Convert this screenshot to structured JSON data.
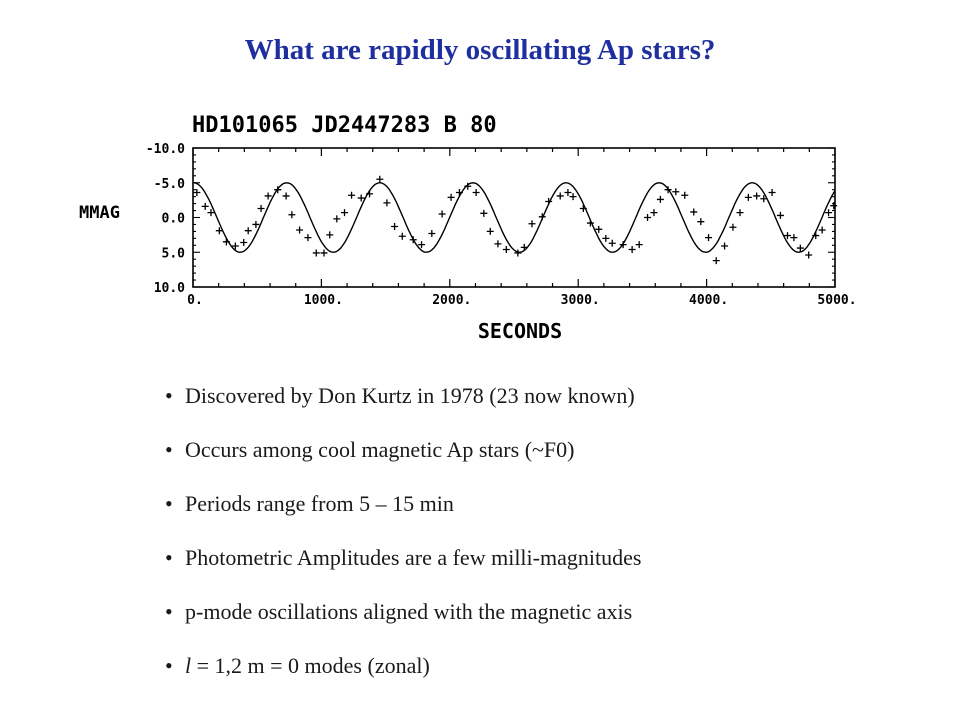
{
  "title": "What are rapidly oscillating Ap stars?",
  "chart_data": {
    "type": "line",
    "title": "HD101065 JD2447283 B 80",
    "xlabel": "SECONDS",
    "ylabel": "MMAG",
    "xlim": [
      0,
      5000
    ],
    "ylim": [
      -10,
      10
    ],
    "y_inverted": true,
    "x_ticks": [
      "0.",
      "1000.",
      "2000.",
      "3000.",
      "4000.",
      "5000."
    ],
    "y_ticks": [
      "-10.0",
      "-5.0",
      "0.0",
      "5.0",
      "10.0"
    ],
    "fit": {
      "amplitude": 5.0,
      "period": 725,
      "phase_peak_x": 1455,
      "offset": 0
    },
    "observations": [
      {
        "x": 30,
        "y": -3.6
      },
      {
        "x": 95,
        "y": -1.6
      },
      {
        "x": 140,
        "y": -0.7
      },
      {
        "x": 205,
        "y": 1.9
      },
      {
        "x": 260,
        "y": 3.5
      },
      {
        "x": 330,
        "y": 4.1
      },
      {
        "x": 395,
        "y": 3.6
      },
      {
        "x": 430,
        "y": 1.9
      },
      {
        "x": 490,
        "y": 1.0
      },
      {
        "x": 530,
        "y": -1.3
      },
      {
        "x": 585,
        "y": -3.1
      },
      {
        "x": 660,
        "y": -4.0
      },
      {
        "x": 725,
        "y": -3.1
      },
      {
        "x": 770,
        "y": -0.4
      },
      {
        "x": 830,
        "y": 1.8
      },
      {
        "x": 895,
        "y": 2.9
      },
      {
        "x": 960,
        "y": 5.1
      },
      {
        "x": 1020,
        "y": 5.1
      },
      {
        "x": 1065,
        "y": 2.5
      },
      {
        "x": 1120,
        "y": 0.2
      },
      {
        "x": 1180,
        "y": -0.7
      },
      {
        "x": 1235,
        "y": -3.2
      },
      {
        "x": 1310,
        "y": -2.8
      },
      {
        "x": 1375,
        "y": -3.4
      },
      {
        "x": 1455,
        "y": -5.5
      },
      {
        "x": 1510,
        "y": -2.1
      },
      {
        "x": 1570,
        "y": 1.3
      },
      {
        "x": 1630,
        "y": 2.7
      },
      {
        "x": 1715,
        "y": 3.2
      },
      {
        "x": 1780,
        "y": 3.9
      },
      {
        "x": 1860,
        "y": 2.3
      },
      {
        "x": 1940,
        "y": -0.5
      },
      {
        "x": 2010,
        "y": -2.9
      },
      {
        "x": 2075,
        "y": -3.6
      },
      {
        "x": 2140,
        "y": -4.5
      },
      {
        "x": 2205,
        "y": -3.6
      },
      {
        "x": 2265,
        "y": -0.6
      },
      {
        "x": 2315,
        "y": 2.0
      },
      {
        "x": 2375,
        "y": 3.8
      },
      {
        "x": 2440,
        "y": 4.6
      },
      {
        "x": 2530,
        "y": 5.1
      },
      {
        "x": 2580,
        "y": 4.3
      },
      {
        "x": 2640,
        "y": 0.9
      },
      {
        "x": 2720,
        "y": -0.1
      },
      {
        "x": 2770,
        "y": -2.3
      },
      {
        "x": 2860,
        "y": -3.1
      },
      {
        "x": 2920,
        "y": -3.6
      },
      {
        "x": 2960,
        "y": -3.0
      },
      {
        "x": 3040,
        "y": -1.3
      },
      {
        "x": 3095,
        "y": 0.8
      },
      {
        "x": 3160,
        "y": 1.7
      },
      {
        "x": 3215,
        "y": 3.0
      },
      {
        "x": 3265,
        "y": 3.7
      },
      {
        "x": 3350,
        "y": 3.9
      },
      {
        "x": 3420,
        "y": 4.6
      },
      {
        "x": 3475,
        "y": 3.9
      },
      {
        "x": 3540,
        "y": 0.0
      },
      {
        "x": 3590,
        "y": -0.7
      },
      {
        "x": 3640,
        "y": -2.6
      },
      {
        "x": 3700,
        "y": -4.0
      },
      {
        "x": 3760,
        "y": -3.7
      },
      {
        "x": 3830,
        "y": -3.2
      },
      {
        "x": 3900,
        "y": -0.8
      },
      {
        "x": 3955,
        "y": 0.6
      },
      {
        "x": 4015,
        "y": 2.9
      },
      {
        "x": 4075,
        "y": 6.2
      },
      {
        "x": 4140,
        "y": 4.1
      },
      {
        "x": 4205,
        "y": 1.4
      },
      {
        "x": 4260,
        "y": -0.7
      },
      {
        "x": 4325,
        "y": -2.9
      },
      {
        "x": 4390,
        "y": -3.1
      },
      {
        "x": 4445,
        "y": -2.7
      },
      {
        "x": 4510,
        "y": -3.6
      },
      {
        "x": 4575,
        "y": -0.3
      },
      {
        "x": 4630,
        "y": 2.6
      },
      {
        "x": 4680,
        "y": 2.9
      },
      {
        "x": 4730,
        "y": 4.4
      },
      {
        "x": 4795,
        "y": 5.4
      },
      {
        "x": 4850,
        "y": 2.6
      },
      {
        "x": 4900,
        "y": 1.8
      },
      {
        "x": 4950,
        "y": -0.7
      },
      {
        "x": 4990,
        "y": -1.7
      }
    ]
  },
  "bullets": [
    {
      "text": "Discovered by Don Kurtz in 1978 (23 now known)"
    },
    {
      "text": "Occurs among cool magnetic Ap stars (~F0)"
    },
    {
      "text": "Periods range from 5 – 15 min"
    },
    {
      "text": "Photometric Amplitudes are a few milli-magnitudes"
    },
    {
      "text": "p-mode oscillations aligned with the magnetic axis"
    },
    {
      "ital": "l",
      "rest": " = 1,2 m = 0 modes (zonal)"
    }
  ],
  "bullet_symbol": "•"
}
